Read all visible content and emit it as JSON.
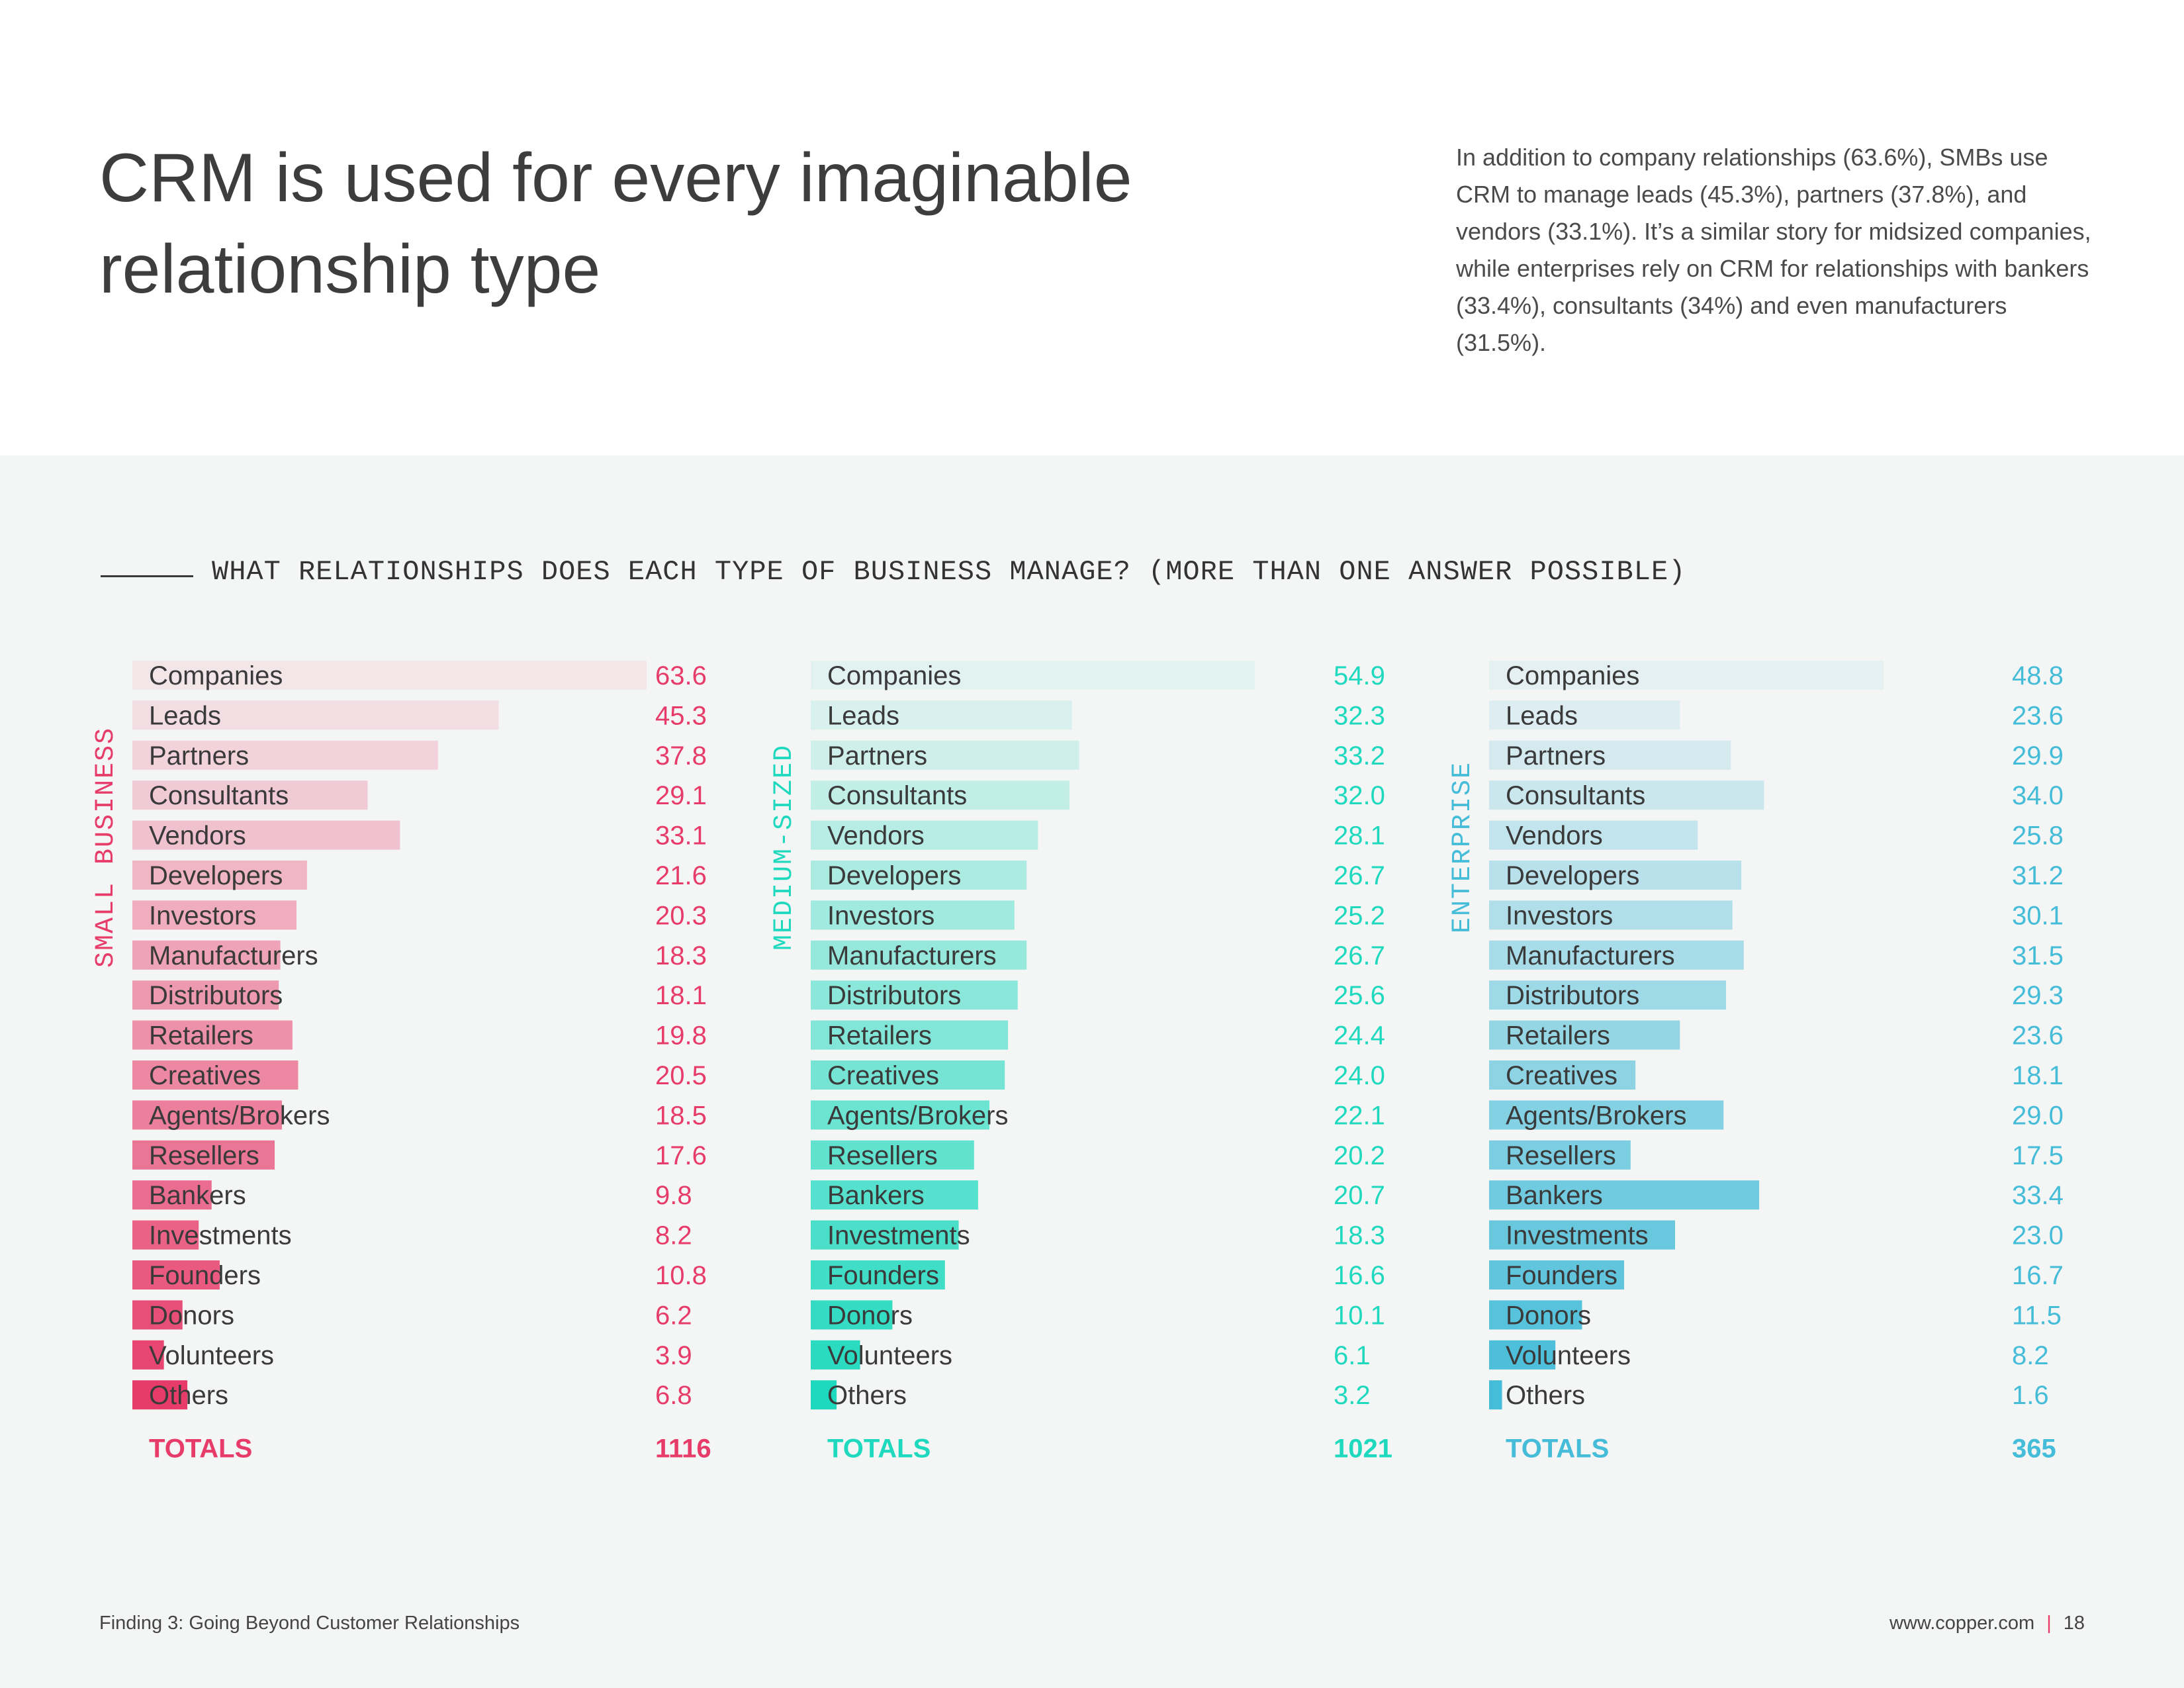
{
  "header": {
    "title": "CRM is used for every imaginable relationship type",
    "intro": "In addition to company relationships (63.6%), SMBs use CRM to manage leads (45.3%), partners (37.8%), and vendors (33.1%). It’s a similar story for midsized companies, while enterprises rely on CRM for relationships with bankers (33.4%), consultants (34%) and even manufacturers (31.5%)."
  },
  "chart_subtitle": "WHAT RELATIONSHIPS DOES EACH TYPE OF BUSINESS MANAGE? (MORE THAN ONE ANSWER POSSIBLE)",
  "footer": {
    "left": "Finding 3: Going Beyond Customer Relationships",
    "url": "www.copper.com",
    "separator": "|",
    "page": "18"
  },
  "chart_data": {
    "type": "bar",
    "orientation": "horizontal",
    "title": "WHAT RELATIONSHIPS DOES EACH TYPE OF BUSINESS MANAGE? (MORE THAN ONE ANSWER POSSIBLE)",
    "categories": [
      "Companies",
      "Leads",
      "Partners",
      "Consultants",
      "Vendors",
      "Developers",
      "Investors",
      "Manufacturers",
      "Distributors",
      "Retailers",
      "Creatives",
      "Agents/Brokers",
      "Resellers",
      "Bankers",
      "Investments",
      "Founders",
      "Donors",
      "Volunteers",
      "Others"
    ],
    "totals_label": "TOTALS",
    "xlim": [
      0,
      63.6
    ],
    "series": [
      {
        "name": "SMALL BUSINESS",
        "color": "#e73c6a",
        "values": [
          "63.6",
          "45.3",
          "37.8",
          "29.1",
          "33.1",
          "21.6",
          "20.3",
          "18.3",
          "18.1",
          "19.8",
          "20.5",
          "18.5",
          "17.6",
          "9.8",
          "8.2",
          "10.8",
          "6.2",
          "3.9",
          "6.8"
        ],
        "total": "1116"
      },
      {
        "name": "MEDIUM-SIZED",
        "color": "#1fd9be",
        "values": [
          "54.9",
          "32.3",
          "33.2",
          "32.0",
          "28.1",
          "26.7",
          "25.2",
          "26.7",
          "25.6",
          "24.4",
          "24.0",
          "22.1",
          "20.2",
          "20.7",
          "18.3",
          "16.6",
          "10.1",
          "6.1",
          "3.2"
        ],
        "total": "1021"
      },
      {
        "name": "ENTERPRISE",
        "color": "#45bcd8",
        "values": [
          "48.8",
          "23.6",
          "29.9",
          "34.0",
          "25.8",
          "31.2",
          "30.1",
          "31.5",
          "29.3",
          "23.6",
          "18.1",
          "29.0",
          "17.5",
          "33.4",
          "23.0",
          "16.7",
          "11.5",
          "8.2",
          "1.6"
        ],
        "total": "365"
      }
    ]
  }
}
